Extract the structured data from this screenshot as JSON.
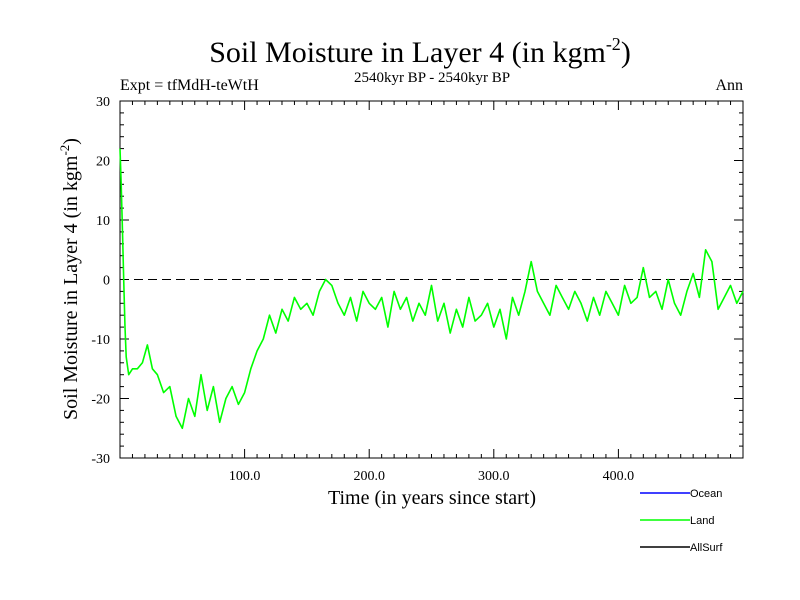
{
  "chart_data": {
    "type": "line",
    "title": "Soil Moisture in Layer 4 (in kgm",
    "title_sup": "-2",
    "title_end": ")",
    "subtitle_left": "Expt = tfMdH-teWtH",
    "subtitle_center": "2540kyr BP - 2540kyr BP",
    "subtitle_right": "Ann",
    "xlabel": "Time (in years since start)",
    "ylabel": "Soil Moisture in Layer 4 (in kgm",
    "ylabel_sup": "-2",
    "ylabel_end": ")",
    "xlim": [
      0,
      500
    ],
    "ylim": [
      -30,
      30
    ],
    "xticks": [
      100,
      200,
      300,
      400
    ],
    "xtick_labels": [
      "100.0",
      "200.0",
      "300.0",
      "400.0"
    ],
    "yticks": [
      -30,
      -20,
      -10,
      0,
      10,
      20,
      30
    ],
    "ytick_labels": [
      "-30",
      "-20",
      "-10",
      "0",
      "10",
      "20",
      "30"
    ],
    "reference_line": 0,
    "legend": [
      {
        "name": "Ocean",
        "color": "#0000ff"
      },
      {
        "name": "Land",
        "color": "#00ff00"
      },
      {
        "name": "AllSurf",
        "color": "#000000"
      }
    ],
    "series": [
      {
        "name": "Land",
        "color": "#00ff00",
        "x": [
          0,
          1,
          2,
          3,
          4,
          5,
          7,
          10,
          14,
          18,
          22,
          26,
          30,
          35,
          40,
          45,
          50,
          55,
          60,
          65,
          70,
          75,
          80,
          85,
          90,
          95,
          100,
          105,
          110,
          115,
          120,
          125,
          130,
          135,
          140,
          145,
          150,
          155,
          160,
          165,
          170,
          175,
          180,
          185,
          190,
          195,
          200,
          205,
          210,
          215,
          220,
          225,
          230,
          235,
          240,
          245,
          250,
          255,
          260,
          265,
          270,
          275,
          280,
          285,
          290,
          295,
          300,
          305,
          310,
          315,
          320,
          325,
          330,
          335,
          340,
          345,
          350,
          355,
          360,
          365,
          370,
          375,
          380,
          385,
          390,
          395,
          400,
          405,
          410,
          415,
          420,
          425,
          430,
          435,
          440,
          445,
          450,
          455,
          460,
          465,
          470,
          475,
          480,
          485,
          490,
          495,
          500
        ],
        "y": [
          22,
          16,
          8,
          0,
          -8,
          -13,
          -16,
          -15,
          -15,
          -14,
          -11,
          -15,
          -16,
          -19,
          -18,
          -23,
          -25,
          -20,
          -23,
          -16,
          -22,
          -18,
          -24,
          -20,
          -18,
          -21,
          -19,
          -15,
          -12,
          -10,
          -6,
          -9,
          -5,
          -7,
          -3,
          -5,
          -4,
          -6,
          -2,
          0,
          -1,
          -4,
          -6,
          -3,
          -7,
          -2,
          -4,
          -5,
          -3,
          -8,
          -2,
          -5,
          -3,
          -7,
          -4,
          -6,
          -1,
          -7,
          -4,
          -9,
          -5,
          -8,
          -3,
          -7,
          -6,
          -4,
          -8,
          -5,
          -10,
          -3,
          -6,
          -2,
          3,
          -2,
          -4,
          -6,
          -1,
          -3,
          -5,
          -2,
          -4,
          -7,
          -3,
          -6,
          -2,
          -4,
          -6,
          -1,
          -4,
          -3,
          2,
          -3,
          -2,
          -5,
          0,
          -4,
          -6,
          -2,
          1,
          -3,
          5,
          3,
          -5,
          -3,
          -1,
          -4,
          -2
        ]
      }
    ]
  }
}
